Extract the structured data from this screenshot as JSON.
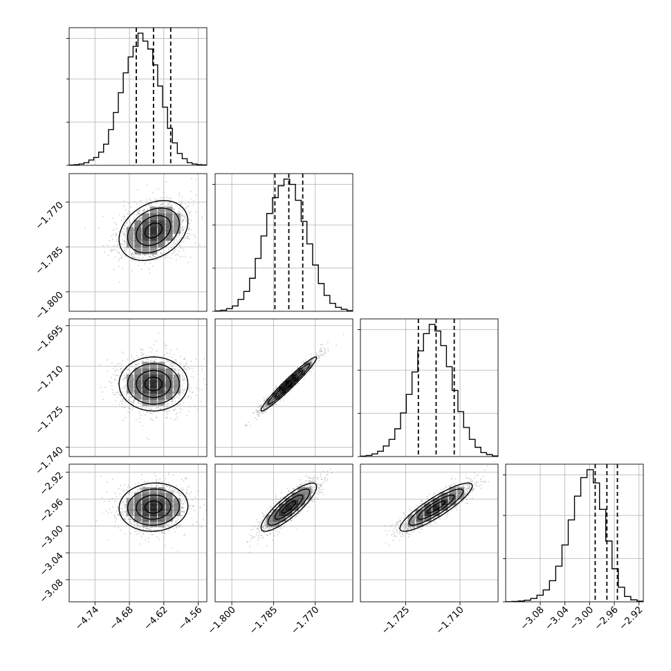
{
  "chart_data": {
    "type": "corner",
    "title": "",
    "n_params": 4,
    "parameters": [
      {
        "index": 0,
        "label": "",
        "quantiles": [
          -4.668,
          -4.638,
          -4.608
        ],
        "range": [
          -4.785,
          -4.545
        ],
        "ticks": [
          -4.74,
          -4.68,
          -4.62,
          -4.56
        ],
        "tick_labels": [
          "−4.74",
          "−4.68",
          "−4.62",
          "−4.56"
        ]
      },
      {
        "index": 1,
        "label": "",
        "quantiles": [
          -1.7845,
          -1.7795,
          -1.7745
        ],
        "range": [
          -1.806,
          -1.7565
        ],
        "ticks": [
          -1.8,
          -1.785,
          -1.77
        ],
        "tick_labels": [
          "−1.800",
          "−1.785",
          "−1.770"
        ]
      },
      {
        "index": 2,
        "label": "",
        "quantiles": [
          -1.7215,
          -1.7166,
          -1.7116
        ],
        "range": [
          -1.7375,
          -1.6995
        ],
        "ticks": [
          -1.74,
          -1.725,
          -1.71,
          -1.695
        ],
        "tick_labels": [
          "−1.740",
          "−1.725",
          "−1.710",
          "−1.695"
        ]
      },
      {
        "index": 3,
        "label": "",
        "quantiles": [
          -2.991,
          -2.972,
          -2.955
        ],
        "range": [
          -3.136,
          -2.913
        ],
        "ticks": [
          -3.08,
          -3.04,
          -3.0,
          -2.96,
          -2.92
        ],
        "tick_labels": [
          "−3.08",
          "−3.04",
          "−3.00",
          "−2.96",
          "−2.92"
        ]
      }
    ],
    "row_ticks": {
      "1": {
        "values": [
          -1.77,
          -1.785,
          -1.8
        ],
        "labels": [
          "−1.770",
          "−1.785",
          "−1.800"
        ],
        "range": [
          -1.8065,
          -1.7605
        ]
      },
      "2": {
        "values": [
          -1.695,
          -1.71,
          -1.725,
          -1.74
        ],
        "labels": [
          "−1.695",
          "−1.710",
          "−1.725",
          "−1.740"
        ],
        "range": [
          -1.7435,
          -1.6925
        ]
      },
      "3": {
        "values": [
          -2.92,
          -2.96,
          -3.0,
          -3.04,
          -3.08
        ],
        "labels": [
          "−2.92",
          "−2.96",
          "−3.00",
          "−3.04",
          "−3.08"
        ],
        "range": [
          -3.113,
          -2.908
        ]
      }
    },
    "posterior": {
      "means": [
        -4.638,
        -1.7795,
        -1.7166,
        -2.972
      ],
      "sds": [
        0.03,
        0.005,
        0.005,
        0.018
      ],
      "correlations": [
        [
          1,
          0.3,
          0.0,
          0.05
        ],
        [
          0.3,
          1,
          0.97,
          0.85
        ],
        [
          0.0,
          0.97,
          1,
          0.88
        ],
        [
          0.05,
          0.85,
          0.88,
          1
        ]
      ]
    },
    "histograms": {
      "0": {
        "bins": [
          -4.785,
          -4.545
        ],
        "counts": [
          0.2,
          0.5,
          1,
          2,
          4,
          6,
          10,
          16,
          27,
          40,
          55,
          70,
          82,
          90,
          100,
          94,
          88,
          76,
          60,
          44,
          28,
          17,
          9,
          5,
          2,
          1,
          0.5,
          0.3
        ]
      },
      "1": {
        "bins": [
          -1.806,
          -1.7565
        ],
        "counts": [
          0.3,
          0.8,
          2,
          4,
          9,
          15,
          25,
          40,
          57,
          74,
          86,
          95,
          100,
          96,
          84,
          68,
          51,
          35,
          21,
          12,
          6,
          3,
          1.5,
          0.5
        ]
      },
      "2": {
        "bins": [
          -1.7375,
          -1.6995
        ],
        "counts": [
          0.3,
          0.8,
          2,
          4,
          8,
          13,
          21,
          33,
          47,
          64,
          80,
          93,
          100,
          95,
          84,
          68,
          50,
          34,
          22,
          13,
          7,
          3,
          1.5,
          0.5
        ]
      },
      "3": {
        "bins": [
          -3.136,
          -2.913
        ],
        "counts": [
          0.1,
          0.3,
          0.6,
          1.2,
          2.5,
          5,
          9,
          16,
          27,
          43,
          62,
          80,
          94,
          100,
          90,
          70,
          46,
          25,
          11,
          4,
          1.5,
          0.5
        ]
      }
    },
    "contour_levels_sigma": [
      0.5,
      1.0,
      1.5,
      2.0
    ],
    "grid": true,
    "colors": {
      "points": "#8f8f8f",
      "lines": "#000000",
      "grid": "#b0b0b0",
      "background": "#ffffff"
    }
  }
}
